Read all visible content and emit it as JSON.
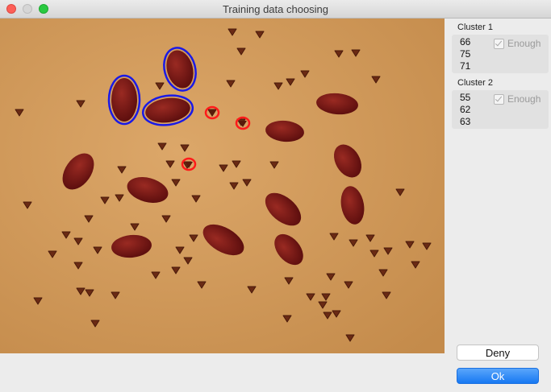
{
  "window": {
    "title": "Training data choosing"
  },
  "clusters": [
    {
      "title": "Cluster 1",
      "values": [
        "66",
        "75",
        "71"
      ],
      "enough_label": "Enough",
      "enough_checked": true
    },
    {
      "title": "Cluster 2",
      "values": [
        "55",
        "62",
        "63"
      ],
      "enough_label": "Enough",
      "enough_checked": true
    }
  ],
  "buttons": {
    "deny_label": "Deny",
    "ok_label": "Ok"
  },
  "colors": {
    "background": "#d6a060",
    "bean": "#7d1414",
    "cluster1_outline": "#1a1ae6",
    "cluster2_outline": "#ff1a1a",
    "accent": "#1778f2"
  }
}
